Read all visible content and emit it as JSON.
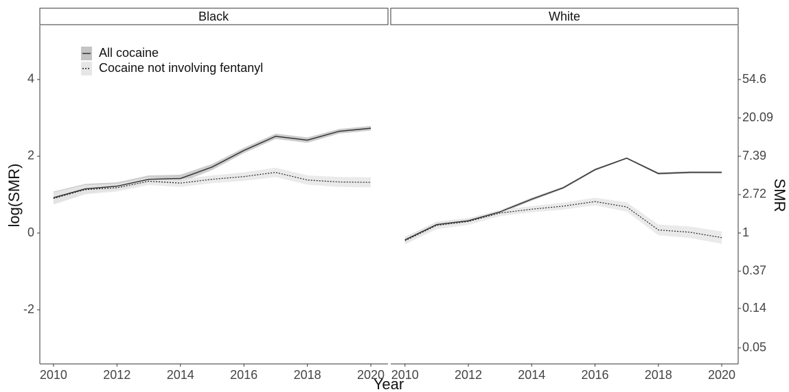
{
  "chart_data": [
    {
      "type": "line",
      "facet": "Black",
      "ylabel": "log(SMR)",
      "xlabel": "Year",
      "legend": "top-left",
      "x": [
        2010,
        2011,
        2012,
        2013,
        2014,
        2015,
        2016,
        2017,
        2018,
        2019,
        2020
      ],
      "xlim": [
        2009.57,
        2020.54
      ],
      "xticks": [
        2010,
        2012,
        2014,
        2016,
        2018,
        2020
      ],
      "ylim": [
        -3.41,
        5.41
      ],
      "yticks": [
        -2,
        0,
        2,
        4
      ],
      "series": [
        {
          "name": "All cocaine",
          "color": "#333333",
          "band_color": "#c4c4c4",
          "dash": "solid",
          "values": [
            0.92,
            1.15,
            1.22,
            1.4,
            1.42,
            1.72,
            2.15,
            2.52,
            2.42,
            2.65,
            2.73
          ],
          "lower": [
            0.75,
            1.02,
            1.12,
            1.3,
            1.32,
            1.64,
            2.08,
            2.45,
            2.35,
            2.59,
            2.67
          ],
          "upper": [
            1.08,
            1.28,
            1.32,
            1.5,
            1.52,
            1.8,
            2.22,
            2.59,
            2.49,
            2.71,
            2.79
          ]
        },
        {
          "name": "Cocaine not involving fentanyl",
          "color": "#222222",
          "band_color": "#e6e6e6",
          "dash": "dotted",
          "values": [
            0.9,
            1.13,
            1.18,
            1.35,
            1.3,
            1.4,
            1.47,
            1.58,
            1.38,
            1.33,
            1.32
          ],
          "lower": [
            0.74,
            1.01,
            1.08,
            1.25,
            1.2,
            1.3,
            1.36,
            1.46,
            1.26,
            1.2,
            1.19
          ],
          "upper": [
            1.06,
            1.25,
            1.28,
            1.45,
            1.4,
            1.5,
            1.58,
            1.7,
            1.5,
            1.46,
            1.45
          ]
        }
      ]
    },
    {
      "type": "line",
      "facet": "White",
      "y2label": "SMR",
      "x": [
        2010,
        2011,
        2012,
        2013,
        2014,
        2015,
        2016,
        2017,
        2018,
        2019,
        2020
      ],
      "xlim": [
        2009.55,
        2020.52
      ],
      "xticks": [
        2010,
        2012,
        2014,
        2016,
        2018,
        2020
      ],
      "ylim": [
        -3.41,
        5.41
      ],
      "y2lim": [
        0.033,
        224
      ],
      "y2log": true,
      "y2ticks": [
        54.6,
        20.09,
        7.39,
        2.72,
        1,
        0.37,
        0.14,
        0.05
      ],
      "series": [
        {
          "color": "#333333",
          "band_color": "#c4c4c4",
          "dash": "solid",
          "values": [
            -0.18,
            0.22,
            0.32,
            0.55,
            0.88,
            1.18,
            1.65,
            1.95,
            1.55,
            1.58,
            1.58
          ],
          "lower": [
            -0.26,
            0.16,
            0.27,
            0.51,
            0.84,
            1.15,
            1.62,
            1.93,
            1.52,
            1.55,
            1.55
          ],
          "upper": [
            -0.1,
            0.28,
            0.37,
            0.59,
            0.92,
            1.21,
            1.68,
            1.97,
            1.58,
            1.61,
            1.61
          ]
        },
        {
          "color": "#222222",
          "band_color": "#e6e6e6",
          "dash": "dotted",
          "values": [
            -0.2,
            0.2,
            0.3,
            0.52,
            0.62,
            0.7,
            0.82,
            0.68,
            0.08,
            0.02,
            -0.12
          ],
          "lower": [
            -0.3,
            0.1,
            0.21,
            0.44,
            0.54,
            0.61,
            0.72,
            0.56,
            -0.06,
            -0.13,
            -0.28
          ],
          "upper": [
            -0.1,
            0.3,
            0.39,
            0.6,
            0.7,
            0.79,
            0.92,
            0.8,
            0.22,
            0.17,
            0.04
          ]
        }
      ]
    }
  ]
}
